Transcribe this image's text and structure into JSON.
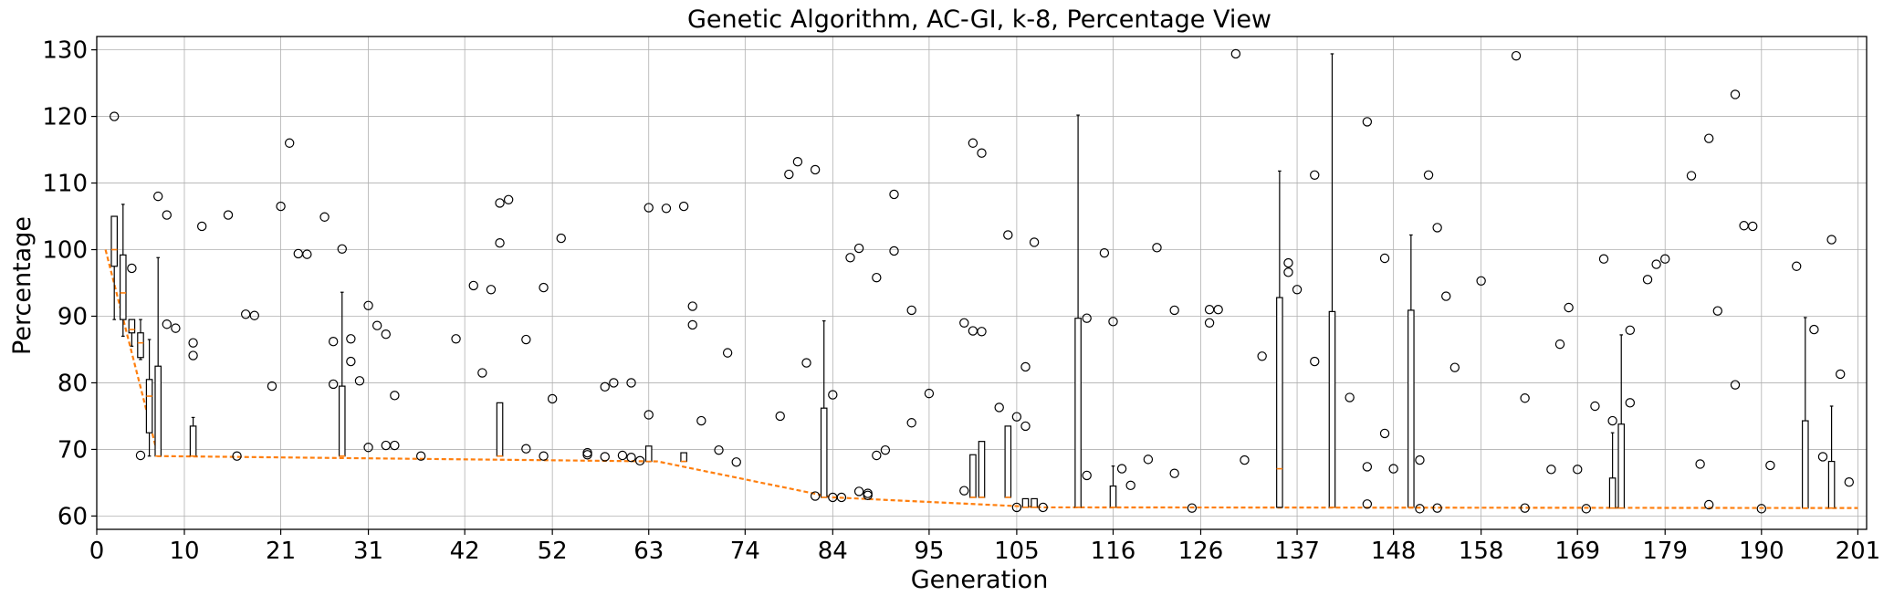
{
  "chart_data": {
    "type": "box",
    "title": "Genetic Algorithm, AC-GI, k-8, Percentage View",
    "xlabel": "Generation",
    "ylabel": "Percentage",
    "xlim": [
      0,
      202
    ],
    "ylim": [
      58,
      132
    ],
    "grid": true,
    "x_ticks": [
      0,
      10,
      21,
      31,
      42,
      52,
      63,
      74,
      84,
      95,
      105,
      116,
      126,
      137,
      148,
      158,
      169,
      179,
      190,
      201
    ],
    "y_ticks": [
      60,
      70,
      80,
      90,
      100,
      110,
      120,
      130
    ],
    "series": [
      {
        "name": "",
        "role": "median-trend",
        "color": "#ff7f0e",
        "x": [
          1,
          7,
          64,
          84,
          108,
          201
        ],
        "y": [
          100,
          69,
          68.2,
          62.8,
          61.3,
          61.2
        ]
      }
    ],
    "boxes": [
      {
        "x": 2,
        "low": 89.5,
        "q1": 97.5,
        "med": 100,
        "q3": 105,
        "high": 105
      },
      {
        "x": 3,
        "low": 87,
        "q1": 89.5,
        "med": 93.5,
        "q3": 99.2,
        "high": 106.8
      },
      {
        "x": 4,
        "low": 85.5,
        "q1": 87.5,
        "med": 88,
        "q3": 89.5,
        "high": 89.5
      },
      {
        "x": 5,
        "low": 83.5,
        "q1": 83.8,
        "med": 86,
        "q3": 87.5,
        "high": 89.5
      },
      {
        "x": 6,
        "low": 69,
        "q1": 72.5,
        "med": 78,
        "q3": 80.5,
        "high": 86.5
      },
      {
        "x": 7,
        "low": 69,
        "q1": 69,
        "med": 69,
        "q3": 82.5,
        "high": 98.8
      },
      {
        "x": 11,
        "low": 69,
        "q1": 69,
        "med": 69,
        "q3": 73.5,
        "high": 74.8
      },
      {
        "x": 28,
        "low": 69,
        "q1": 69,
        "med": 69,
        "q3": 79.5,
        "high": 93.6
      },
      {
        "x": 46,
        "low": 69,
        "q1": 69,
        "med": 69,
        "q3": 77,
        "high": 77
      },
      {
        "x": 63,
        "low": 68.2,
        "q1": 68.2,
        "med": 68.2,
        "q3": 70.5,
        "high": 70.5
      },
      {
        "x": 67,
        "low": 68.2,
        "q1": 68.2,
        "med": 68.2,
        "q3": 69.5,
        "high": 69.5
      },
      {
        "x": 83,
        "low": 62.8,
        "q1": 62.8,
        "med": 62.8,
        "q3": 76.2,
        "high": 89.3
      },
      {
        "x": 100,
        "low": 62.8,
        "q1": 62.8,
        "med": 62.8,
        "q3": 69.2,
        "high": 69.2
      },
      {
        "x": 101,
        "low": 62.8,
        "q1": 62.8,
        "med": 62.8,
        "q3": 71.2,
        "high": 71.2
      },
      {
        "x": 104,
        "low": 62.8,
        "q1": 62.8,
        "med": 62.8,
        "q3": 73.5,
        "high": 73.5
      },
      {
        "x": 106,
        "low": 61.3,
        "q1": 61.3,
        "med": 61.3,
        "q3": 62.6,
        "high": 62.6
      },
      {
        "x": 107,
        "low": 61.3,
        "q1": 61.3,
        "med": 61.3,
        "q3": 62.6,
        "high": 62.6
      },
      {
        "x": 112,
        "low": 61.3,
        "q1": 61.3,
        "med": 61.3,
        "q3": 89.7,
        "high": 120.2
      },
      {
        "x": 116,
        "low": 61.3,
        "q1": 61.3,
        "med": 61.3,
        "q3": 64.5,
        "high": 67.5
      },
      {
        "x": 135,
        "low": 61.3,
        "q1": 61.3,
        "med": 67.1,
        "q3": 92.8,
        "high": 111.8
      },
      {
        "x": 141,
        "low": 61.3,
        "q1": 61.3,
        "med": 61.3,
        "q3": 90.7,
        "high": 129.4
      },
      {
        "x": 150,
        "low": 61.3,
        "q1": 61.3,
        "med": 61.3,
        "q3": 90.9,
        "high": 102.2
      },
      {
        "x": 173,
        "low": 61.2,
        "q1": 61.2,
        "med": 61.2,
        "q3": 65.7,
        "high": 72.5
      },
      {
        "x": 174,
        "low": 61.2,
        "q1": 61.2,
        "med": 61.2,
        "q3": 73.8,
        "high": 87.2
      },
      {
        "x": 195,
        "low": 61.2,
        "q1": 61.2,
        "med": 61.2,
        "q3": 74.3,
        "high": 89.8
      },
      {
        "x": 198,
        "low": 61.2,
        "q1": 61.2,
        "med": 61.2,
        "q3": 68.2,
        "high": 76.5
      }
    ],
    "outliers": [
      [
        2,
        120
      ],
      [
        4,
        97.2
      ],
      [
        5,
        69.1
      ],
      [
        7,
        108
      ],
      [
        8,
        105.2
      ],
      [
        8,
        88.8
      ],
      [
        9,
        88.2
      ],
      [
        11,
        86
      ],
      [
        11,
        84.1
      ],
      [
        12,
        103.5
      ],
      [
        15,
        105.2
      ],
      [
        16,
        69
      ],
      [
        17,
        90.3
      ],
      [
        18,
        90.1
      ],
      [
        20,
        79.5
      ],
      [
        21,
        106.5
      ],
      [
        22,
        116
      ],
      [
        23,
        99.4
      ],
      [
        24,
        99.3
      ],
      [
        26,
        104.9
      ],
      [
        27,
        86.2
      ],
      [
        27,
        79.8
      ],
      [
        28,
        100.1
      ],
      [
        29,
        86.6
      ],
      [
        29,
        83.2
      ],
      [
        30,
        80.3
      ],
      [
        31,
        91.6
      ],
      [
        31,
        70.3
      ],
      [
        32,
        88.6
      ],
      [
        33,
        87.3
      ],
      [
        33,
        70.6
      ],
      [
        34,
        70.6
      ],
      [
        34,
        78.1
      ],
      [
        37,
        69
      ],
      [
        41,
        86.6
      ],
      [
        43,
        94.6
      ],
      [
        44,
        81.5
      ],
      [
        45,
        94
      ],
      [
        46,
        107
      ],
      [
        46,
        101
      ],
      [
        47,
        107.5
      ],
      [
        49,
        86.5
      ],
      [
        49,
        70.1
      ],
      [
        51,
        94.3
      ],
      [
        51,
        69
      ],
      [
        52,
        77.6
      ],
      [
        53,
        101.7
      ],
      [
        56,
        69.5
      ],
      [
        56,
        69.2
      ],
      [
        58,
        79.4
      ],
      [
        58,
        68.9
      ],
      [
        59,
        80
      ],
      [
        60,
        69.1
      ],
      [
        61,
        80
      ],
      [
        61,
        68.8
      ],
      [
        62,
        68.3
      ],
      [
        63,
        75.2
      ],
      [
        63,
        106.3
      ],
      [
        65,
        106.2
      ],
      [
        67,
        106.5
      ],
      [
        68,
        91.5
      ],
      [
        68,
        88.7
      ],
      [
        69,
        74.3
      ],
      [
        71,
        69.9
      ],
      [
        72,
        84.5
      ],
      [
        73,
        68.1
      ],
      [
        78,
        75
      ],
      [
        79,
        111.3
      ],
      [
        80,
        113.2
      ],
      [
        81,
        83
      ],
      [
        82,
        112
      ],
      [
        82,
        63
      ],
      [
        84,
        78.2
      ],
      [
        84,
        62.8
      ],
      [
        85,
        62.8
      ],
      [
        86,
        98.8
      ],
      [
        87,
        100.2
      ],
      [
        87,
        63.7
      ],
      [
        88,
        63.1
      ],
      [
        88,
        63.4
      ],
      [
        89,
        95.8
      ],
      [
        89,
        69.1
      ],
      [
        90,
        69.9
      ],
      [
        91,
        108.3
      ],
      [
        91,
        99.8
      ],
      [
        93,
        90.9
      ],
      [
        93,
        74
      ],
      [
        95,
        78.4
      ],
      [
        99,
        89
      ],
      [
        99,
        63.8
      ],
      [
        100,
        116
      ],
      [
        100,
        87.8
      ],
      [
        101,
        114.5
      ],
      [
        101,
        87.7
      ],
      [
        103,
        76.3
      ],
      [
        104,
        102.2
      ],
      [
        105,
        74.9
      ],
      [
        105,
        61.3
      ],
      [
        106,
        82.4
      ],
      [
        106,
        73.5
      ],
      [
        107,
        101.1
      ],
      [
        108,
        61.3
      ],
      [
        113,
        89.7
      ],
      [
        113,
        66.1
      ],
      [
        115,
        99.5
      ],
      [
        116,
        89.2
      ],
      [
        117,
        67.1
      ],
      [
        118,
        64.6
      ],
      [
        120,
        68.5
      ],
      [
        121,
        100.3
      ],
      [
        123,
        90.9
      ],
      [
        123,
        66.4
      ],
      [
        125,
        61.2
      ],
      [
        127,
        91
      ],
      [
        127,
        89
      ],
      [
        128,
        91
      ],
      [
        130,
        129.4
      ],
      [
        131,
        68.4
      ],
      [
        133,
        84
      ],
      [
        136,
        98
      ],
      [
        136,
        96.6
      ],
      [
        137,
        94
      ],
      [
        139,
        111.2
      ],
      [
        139,
        83.2
      ],
      [
        143,
        77.8
      ],
      [
        145,
        119.2
      ],
      [
        145,
        67.4
      ],
      [
        145,
        61.8
      ],
      [
        147,
        98.7
      ],
      [
        147,
        72.4
      ],
      [
        148,
        67.1
      ],
      [
        151,
        68.4
      ],
      [
        151,
        61.1
      ],
      [
        152,
        111.2
      ],
      [
        153,
        103.3
      ],
      [
        153,
        61.2
      ],
      [
        154,
        93
      ],
      [
        155,
        82.3
      ],
      [
        158,
        95.3
      ],
      [
        162,
        129.1
      ],
      [
        163,
        77.7
      ],
      [
        163,
        61.2
      ],
      [
        166,
        67
      ],
      [
        167,
        85.8
      ],
      [
        168,
        91.3
      ],
      [
        169,
        67
      ],
      [
        170,
        61.1
      ],
      [
        171,
        76.5
      ],
      [
        172,
        98.6
      ],
      [
        173,
        74.3
      ],
      [
        175,
        77
      ],
      [
        175,
        87.9
      ],
      [
        177,
        95.5
      ],
      [
        178,
        97.8
      ],
      [
        179,
        98.6
      ],
      [
        182,
        111.1
      ],
      [
        183,
        67.8
      ],
      [
        184,
        116.7
      ],
      [
        184,
        61.7
      ],
      [
        185,
        90.8
      ],
      [
        187,
        123.3
      ],
      [
        187,
        79.7
      ],
      [
        188,
        103.6
      ],
      [
        189,
        103.5
      ],
      [
        190,
        61.1
      ],
      [
        191,
        67.6
      ],
      [
        194,
        97.5
      ],
      [
        196,
        88
      ],
      [
        197,
        68.9
      ],
      [
        198,
        101.5
      ],
      [
        199,
        81.3
      ],
      [
        200,
        65.1
      ]
    ]
  }
}
